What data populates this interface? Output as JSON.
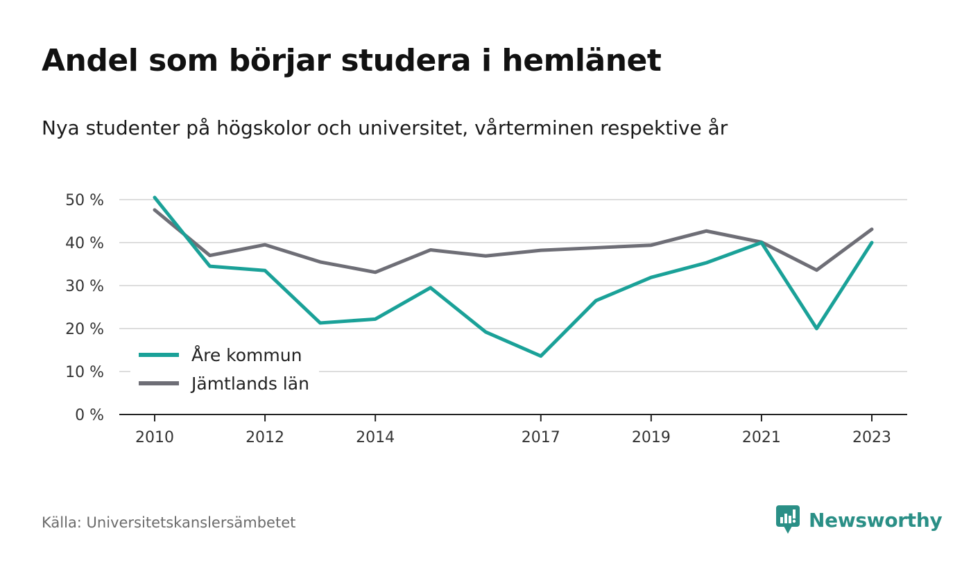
{
  "title": "Andel som börjar studera i hemlänet",
  "subtitle": "Nya studenter på högskolor och universitet, vårterminen respektive år",
  "source": "Källa: Universitetskanslersämbetet",
  "brand": {
    "name": "Newsworthy",
    "icon": "newsworthy-logo-icon",
    "color": "#2a8f86"
  },
  "chart_data": {
    "type": "line",
    "x": [
      2010,
      2011,
      2012,
      2013,
      2014,
      2015,
      2016,
      2017,
      2018,
      2019,
      2020,
      2021,
      2022,
      2023
    ],
    "x_tick_values": [
      2010,
      2012,
      2014,
      2017,
      2019,
      2021,
      2023
    ],
    "x_tick_labels": [
      "2010",
      "2012",
      "2014",
      "2017",
      "2019",
      "2021",
      "2023"
    ],
    "y_ticks": [
      0,
      10,
      20,
      30,
      40,
      50
    ],
    "y_tick_labels": [
      "0 %",
      "10 %",
      "20 %",
      "30 %",
      "40 %",
      "50 %"
    ],
    "ylim": [
      0,
      50
    ],
    "grid": true,
    "legend_position": "bottom-left",
    "series": [
      {
        "name": "Åre kommun",
        "color": "#1aa198",
        "values": [
          50.5,
          34.5,
          33.5,
          21.3,
          22.2,
          29.5,
          19.2,
          13.6,
          26.5,
          31.9,
          35.3,
          40.0,
          20.0,
          40.0
        ]
      },
      {
        "name": "Jämtlands län",
        "color": "#6e6e76",
        "values": [
          47.6,
          37.0,
          39.5,
          35.5,
          33.1,
          38.3,
          36.9,
          38.2,
          38.8,
          39.4,
          42.7,
          40.1,
          33.6,
          43.1
        ]
      }
    ]
  }
}
